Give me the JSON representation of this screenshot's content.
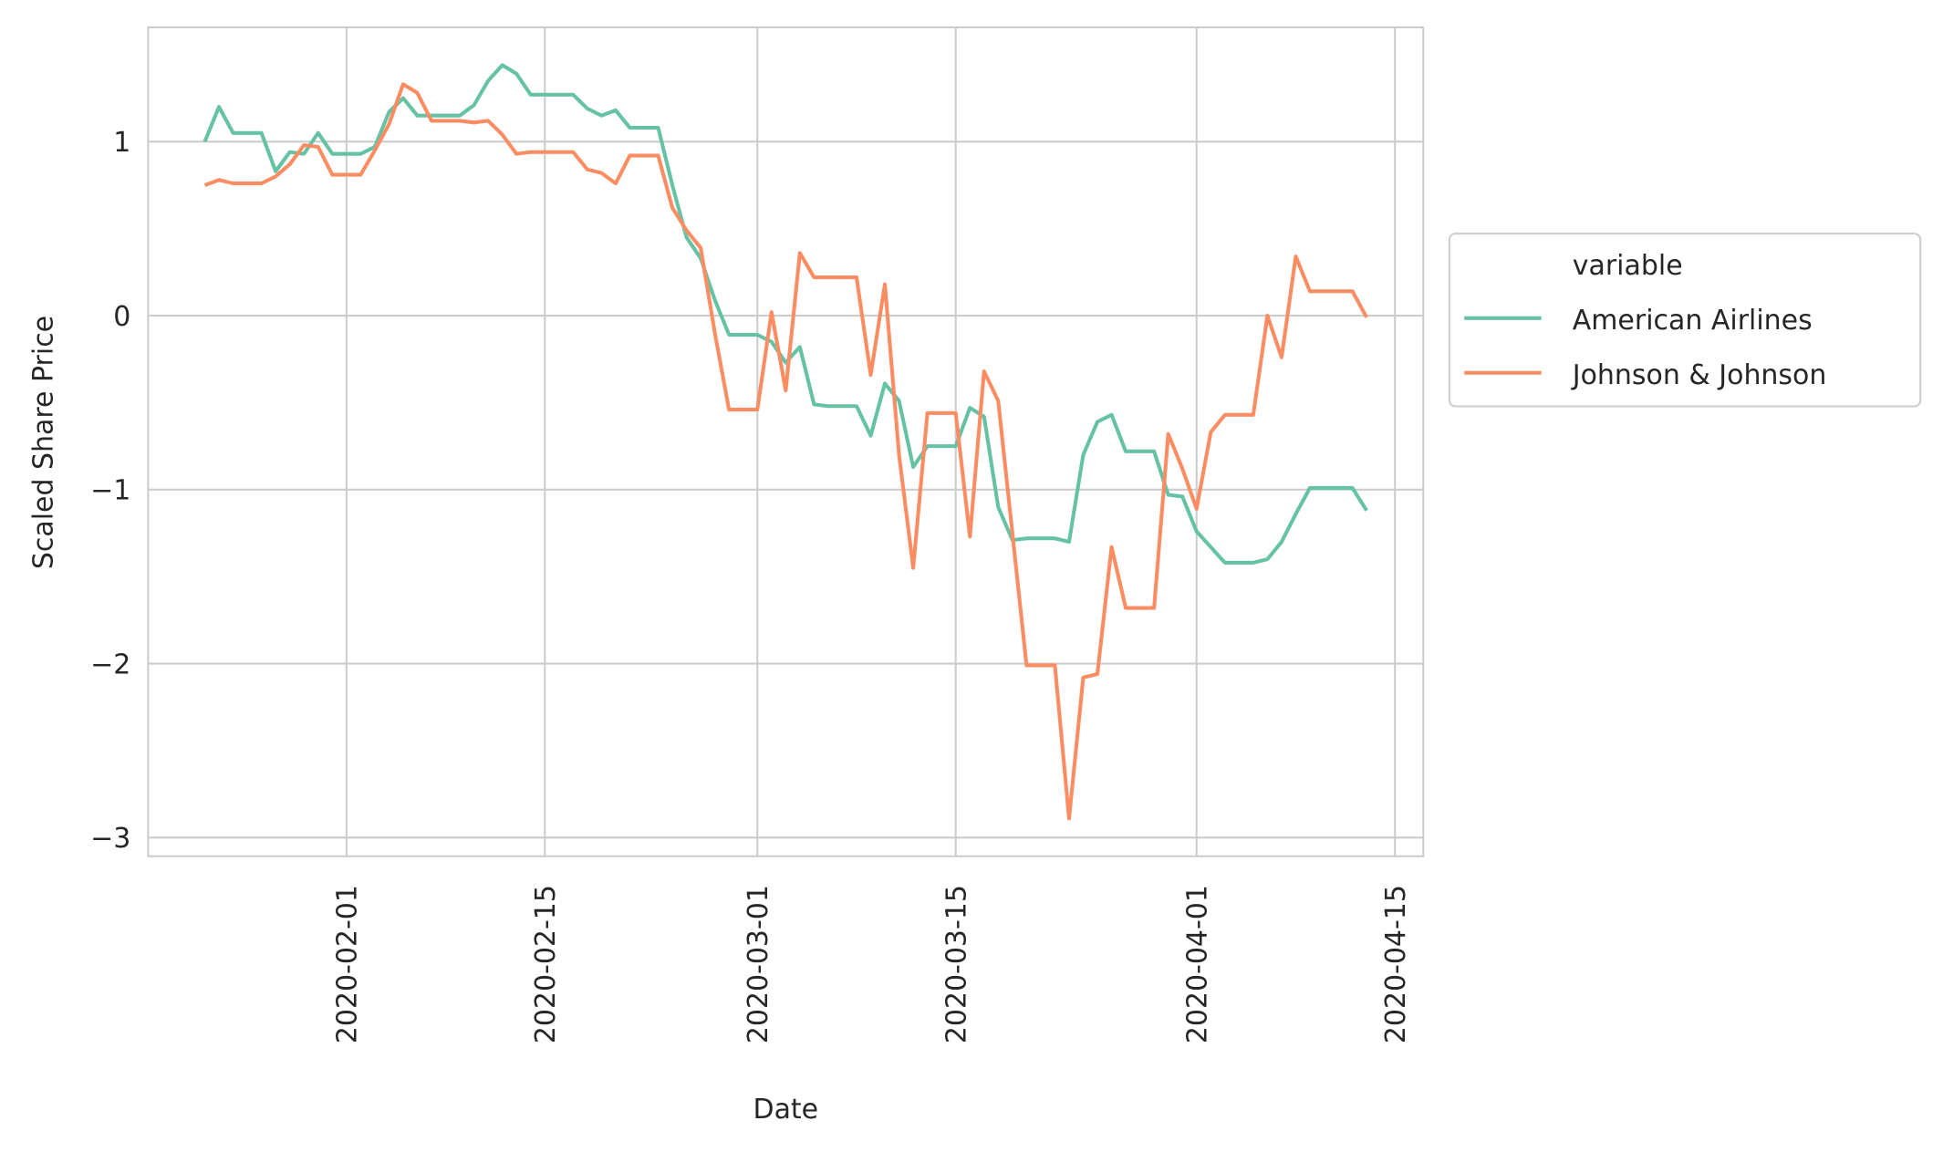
{
  "chart_data": {
    "type": "line",
    "x_label": "Date",
    "y_label": "Scaled Share Price",
    "legend_title": "variable",
    "legend_position": "outside right",
    "grid": true,
    "x": [
      "2020-01-22",
      "2020-01-23",
      "2020-01-24",
      "2020-01-25",
      "2020-01-26",
      "2020-01-27",
      "2020-01-28",
      "2020-01-29",
      "2020-01-30",
      "2020-01-31",
      "2020-02-01",
      "2020-02-02",
      "2020-02-03",
      "2020-02-04",
      "2020-02-05",
      "2020-02-06",
      "2020-02-07",
      "2020-02-08",
      "2020-02-09",
      "2020-02-10",
      "2020-02-11",
      "2020-02-12",
      "2020-02-13",
      "2020-02-14",
      "2020-02-15",
      "2020-02-16",
      "2020-02-17",
      "2020-02-18",
      "2020-02-19",
      "2020-02-20",
      "2020-02-21",
      "2020-02-22",
      "2020-02-23",
      "2020-02-24",
      "2020-02-25",
      "2020-02-26",
      "2020-02-27",
      "2020-02-28",
      "2020-02-29",
      "2020-03-01",
      "2020-03-02",
      "2020-03-03",
      "2020-03-04",
      "2020-03-05",
      "2020-03-06",
      "2020-03-07",
      "2020-03-08",
      "2020-03-09",
      "2020-03-10",
      "2020-03-11",
      "2020-03-12",
      "2020-03-13",
      "2020-03-14",
      "2020-03-15",
      "2020-03-16",
      "2020-03-17",
      "2020-03-18",
      "2020-03-19",
      "2020-03-20",
      "2020-03-21",
      "2020-03-22",
      "2020-03-23",
      "2020-03-24",
      "2020-03-25",
      "2020-03-26",
      "2020-03-27",
      "2020-03-28",
      "2020-03-29",
      "2020-03-30",
      "2020-03-31",
      "2020-04-01",
      "2020-04-02",
      "2020-04-03",
      "2020-04-04",
      "2020-04-05",
      "2020-04-06",
      "2020-04-07",
      "2020-04-08",
      "2020-04-09",
      "2020-04-10",
      "2020-04-11",
      "2020-04-12",
      "2020-04-13"
    ],
    "series": [
      {
        "name": "American Airlines",
        "color": "#66c2a5",
        "values": [
          1.0,
          1.2,
          1.05,
          1.05,
          1.05,
          0.83,
          0.94,
          0.93,
          1.05,
          0.93,
          0.93,
          0.93,
          0.97,
          1.17,
          1.25,
          1.15,
          1.15,
          1.15,
          1.15,
          1.21,
          1.35,
          1.44,
          1.39,
          1.27,
          1.27,
          1.27,
          1.27,
          1.19,
          1.15,
          1.18,
          1.08,
          1.08,
          1.08,
          0.75,
          0.45,
          0.33,
          0.09,
          -0.11,
          -0.11,
          -0.11,
          -0.15,
          -0.27,
          -0.18,
          -0.51,
          -0.52,
          -0.52,
          -0.52,
          -0.69,
          -0.39,
          -0.49,
          -0.87,
          -0.75,
          -0.75,
          -0.75,
          -0.53,
          -0.58,
          -1.1,
          -1.29,
          -1.28,
          -1.28,
          -1.28,
          -1.3,
          -0.8,
          -0.61,
          -0.57,
          -0.78,
          -0.78,
          -0.78,
          -1.03,
          -1.04,
          -1.24,
          -1.33,
          -1.42,
          -1.42,
          -1.42,
          -1.4,
          -1.3,
          -1.14,
          -0.99,
          -0.99,
          -0.99,
          -0.99,
          -1.12
        ]
      },
      {
        "name": "Johnson & Johnson",
        "color": "#fc8d62",
        "values": [
          0.75,
          0.78,
          0.76,
          0.76,
          0.76,
          0.8,
          0.87,
          0.98,
          0.97,
          0.81,
          0.81,
          0.81,
          0.95,
          1.1,
          1.33,
          1.28,
          1.12,
          1.12,
          1.12,
          1.11,
          1.12,
          1.04,
          0.93,
          0.94,
          0.94,
          0.94,
          0.94,
          0.84,
          0.82,
          0.76,
          0.92,
          0.92,
          0.92,
          0.62,
          0.49,
          0.39,
          -0.1,
          -0.54,
          -0.54,
          -0.54,
          0.02,
          -0.43,
          0.36,
          0.22,
          0.22,
          0.22,
          0.22,
          -0.34,
          0.18,
          -0.8,
          -1.45,
          -0.56,
          -0.56,
          -0.56,
          -1.27,
          -0.32,
          -0.49,
          -1.25,
          -2.01,
          -2.01,
          -2.01,
          -2.89,
          -2.08,
          -2.06,
          -1.33,
          -1.68,
          -1.68,
          -1.68,
          -0.68,
          -0.88,
          -1.11,
          -0.67,
          -0.57,
          -0.57,
          -0.57,
          0.0,
          -0.24,
          0.34,
          0.14,
          0.14,
          0.14,
          0.14,
          -0.01
        ]
      }
    ],
    "xlim": [
      "2020-01-18",
      "2020-04-17"
    ],
    "xticks": [
      "2020-02-01",
      "2020-02-15",
      "2020-03-01",
      "2020-03-15",
      "2020-04-01",
      "2020-04-15"
    ],
    "ylim": [
      -3.107,
      1.657
    ],
    "yticks": [
      {
        "value": -3,
        "label": "−3"
      },
      {
        "value": -2,
        "label": "−2"
      },
      {
        "value": -1,
        "label": "−1"
      },
      0,
      1
    ]
  }
}
